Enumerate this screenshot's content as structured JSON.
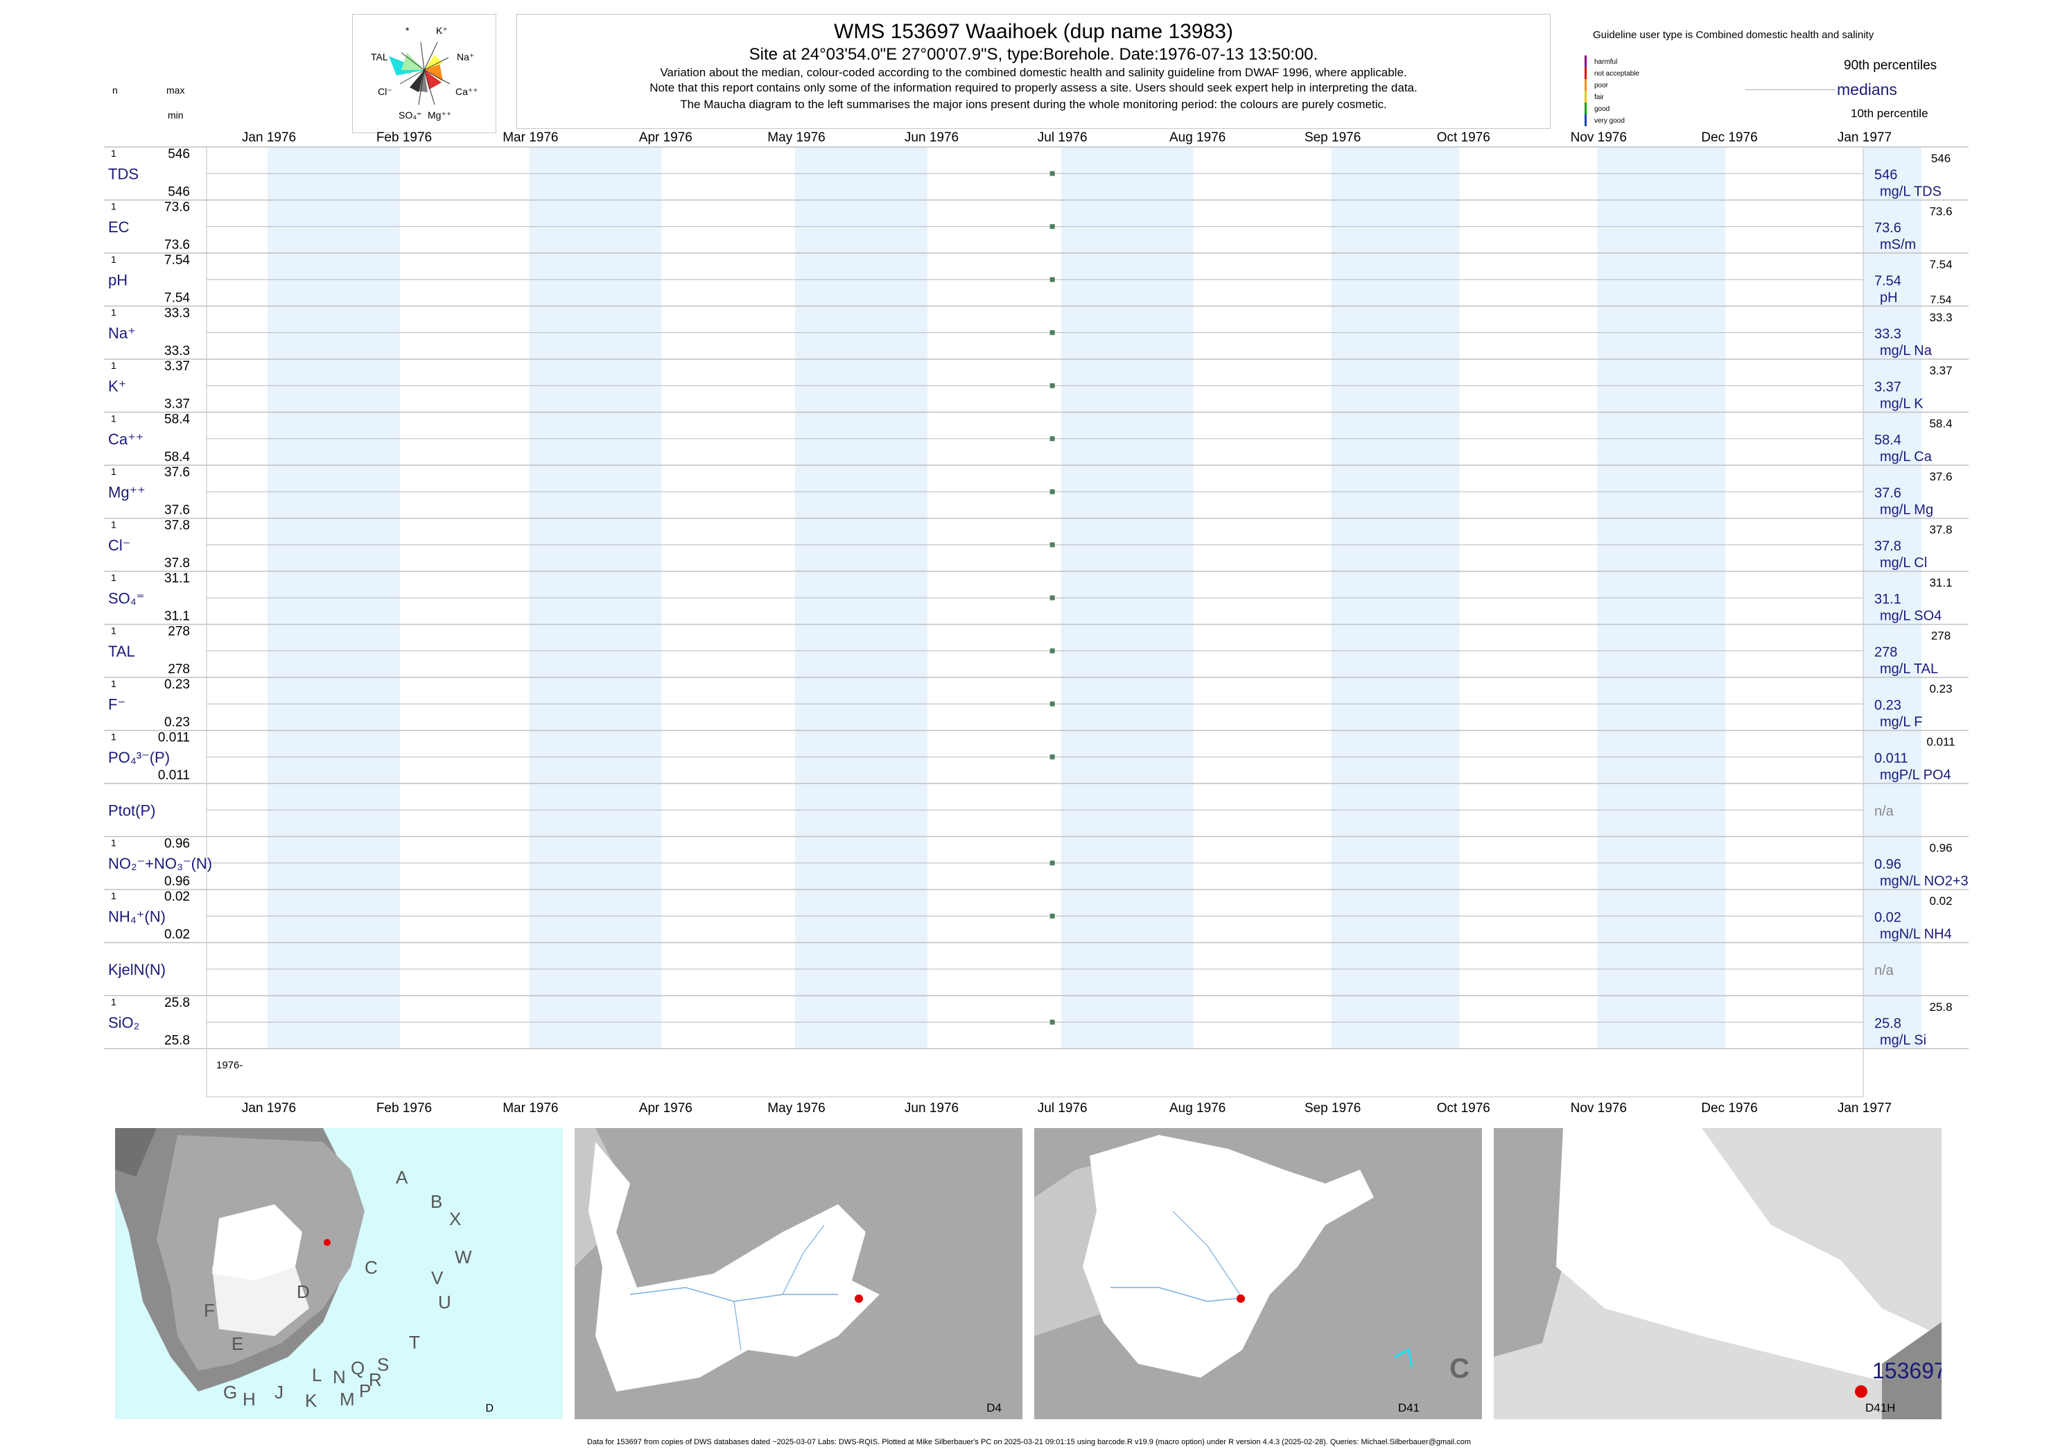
{
  "header": {
    "title": "WMS 153697  Waaihoek (dup name 13983)",
    "subtitle": "Site at 24°03'54.0\"E 27°00'07.9\"S, type:Borehole. Date:1976-07-13 13:50:00.",
    "note1": "Variation about the median,  colour-coded according to the combined domestic health and salinity guideline from DWAF 1996, where applicable.",
    "note2": "Note that this report contains only some of the information required to properly assess a site. Users should seek expert help in interpreting the data.",
    "note3": "The Maucha diagram to the left summarises the major ions present during the whole monitoring period: the colours are purely cosmetic."
  },
  "left_header": {
    "n": "n",
    "max": "max",
    "min": "min"
  },
  "maucha": {
    "labels": [
      {
        "text": "*",
        "key": "star"
      },
      {
        "text": "K⁺",
        "key": "k"
      },
      {
        "text": "TAL",
        "key": "tal"
      },
      {
        "text": "Na⁺",
        "key": "na"
      },
      {
        "text": "Cl⁻",
        "key": "cl"
      },
      {
        "text": "Ca⁺⁺",
        "key": "ca"
      },
      {
        "text": "SO₄⁼",
        "key": "so4"
      },
      {
        "text": "Mg⁺⁺",
        "key": "mg"
      }
    ]
  },
  "legend": {
    "title": "Guideline user type is Combined domestic health and salinity",
    "categories": [
      {
        "label": "harmful",
        "color": "#8b008b"
      },
      {
        "label": "not acceptable",
        "color": "#e00000"
      },
      {
        "label": "poor",
        "color": "#ff8c00"
      },
      {
        "label": "fair",
        "color": "#e6c800"
      },
      {
        "label": "good",
        "color": "#00a000"
      },
      {
        "label": "very good",
        "color": "#1f3fbf"
      }
    ],
    "p90": "90th percentiles",
    "medians": "medians",
    "p10": "10th percentile"
  },
  "colors": {
    "band": "#e8f3fc",
    "point": "#4f7f5f",
    "navy": "#1a1a7a",
    "grid": "#c0c0c0",
    "site": "#e00000",
    "sea": "#d7fafc"
  },
  "chart_data": {
    "type": "scatter",
    "x_axis": {
      "range": [
        "1976-01-01",
        "1977-01-15"
      ],
      "tick_labels": [
        "Jan 1976",
        "Feb 1976",
        "Mar 1976",
        "Apr 1976",
        "May 1976",
        "Jun 1976",
        "Jul 1976",
        "Aug 1976",
        "Sep 1976",
        "Oct 1976",
        "Nov 1976",
        "Dec 1976",
        "Jan 1977"
      ],
      "year_label": "1976-"
    },
    "sample_date": "1976-07-13",
    "rows": [
      {
        "name": "TDS",
        "n": "1",
        "max": "546",
        "min": "546",
        "median": "546",
        "p90": "546",
        "unit": "mg/L TDS",
        "value": 546
      },
      {
        "name": "EC",
        "n": "1",
        "max": "73.6",
        "min": "73.6",
        "median": "73.6",
        "p90": "73.6",
        "unit": "mS/m",
        "value": 73.6
      },
      {
        "name": "pH",
        "n": "1",
        "max": "7.54",
        "min": "7.54",
        "median": "7.54",
        "p90": "7.54",
        "p10": "7.54",
        "unit": "pH",
        "value": 7.54
      },
      {
        "name": "Na⁺",
        "n": "1",
        "max": "33.3",
        "min": "33.3",
        "median": "33.3",
        "p90": "33.3",
        "unit": "mg/L Na",
        "value": 33.3
      },
      {
        "name": "K⁺",
        "n": "1",
        "max": "3.37",
        "min": "3.37",
        "median": "3.37",
        "p90": "3.37",
        "unit": "mg/L K",
        "value": 3.37
      },
      {
        "name": "Ca⁺⁺",
        "n": "1",
        "max": "58.4",
        "min": "58.4",
        "median": "58.4",
        "p90": "58.4",
        "unit": "mg/L Ca",
        "value": 58.4
      },
      {
        "name": "Mg⁺⁺",
        "n": "1",
        "max": "37.6",
        "min": "37.6",
        "median": "37.6",
        "p90": "37.6",
        "unit": "mg/L Mg",
        "value": 37.6
      },
      {
        "name": "Cl⁻",
        "n": "1",
        "max": "37.8",
        "min": "37.8",
        "median": "37.8",
        "p90": "37.8",
        "unit": "mg/L Cl",
        "value": 37.8
      },
      {
        "name": "SO₄⁼",
        "n": "1",
        "max": "31.1",
        "min": "31.1",
        "median": "31.1",
        "p90": "31.1",
        "unit": "mg/L SO4",
        "value": 31.1
      },
      {
        "name": "TAL",
        "n": "1",
        "max": "278",
        "min": "278",
        "median": "278",
        "p90": "278",
        "unit": "mg/L TAL",
        "value": 278
      },
      {
        "name": "F⁻",
        "n": "1",
        "max": "0.23",
        "min": "0.23",
        "median": "0.23",
        "p90": "0.23",
        "unit": "mg/L F",
        "value": 0.23
      },
      {
        "name": "PO₄³⁻(P)",
        "n": "1",
        "max": "0.011",
        "min": "0.011",
        "median": "0.011",
        "p90": "0.011",
        "unit": "mgP/L PO4",
        "value": 0.011
      },
      {
        "name": "Ptot(P)",
        "n": "",
        "max": "",
        "min": "",
        "median": "n/a",
        "p90": "",
        "unit": "",
        "value": null
      },
      {
        "name": "NO₂⁻+NO₃⁻(N)",
        "n": "1",
        "max": "0.96",
        "min": "0.96",
        "median": "0.96",
        "p90": "0.96",
        "unit": "mgN/L NO2+3",
        "value": 0.96
      },
      {
        "name": "NH₄⁺(N)",
        "n": "1",
        "max": "0.02",
        "min": "0.02",
        "median": "0.02",
        "p90": "0.02",
        "unit": "mgN/L NH4",
        "value": 0.02
      },
      {
        "name": "KjelN(N)",
        "n": "",
        "max": "",
        "min": "",
        "median": "n/a",
        "p90": "",
        "unit": "",
        "value": null
      },
      {
        "name": "SiO₂",
        "n": "1",
        "max": "25.8",
        "min": "25.8",
        "median": "25.8",
        "p90": "25.8",
        "unit": "mg/L Si",
        "value": 25.8
      }
    ]
  },
  "maps": [
    {
      "label": "D",
      "regions": [
        "A",
        "B",
        "X",
        "W",
        "C",
        "D",
        "V",
        "U",
        "F",
        "E",
        "T",
        "S",
        "R",
        "Q",
        "N",
        "L",
        "G",
        "H",
        "J",
        "K",
        "M",
        "P"
      ]
    },
    {
      "label": "D4"
    },
    {
      "label": "D41",
      "region": "C"
    },
    {
      "label": "D41H",
      "site_label": "153697"
    }
  ],
  "footer": "Data for 153697 from copies of DWS databases dated ~2025-03-07 Labs: DWS-RQIS. Plotted at Mike Silberbauer's PC on 2025-03-21 09:01:15 using barcode.R v19.9 (macro option) under R version 4.4.3 (2025-02-28). Queries: Michael.Silberbauer@gmail.com"
}
